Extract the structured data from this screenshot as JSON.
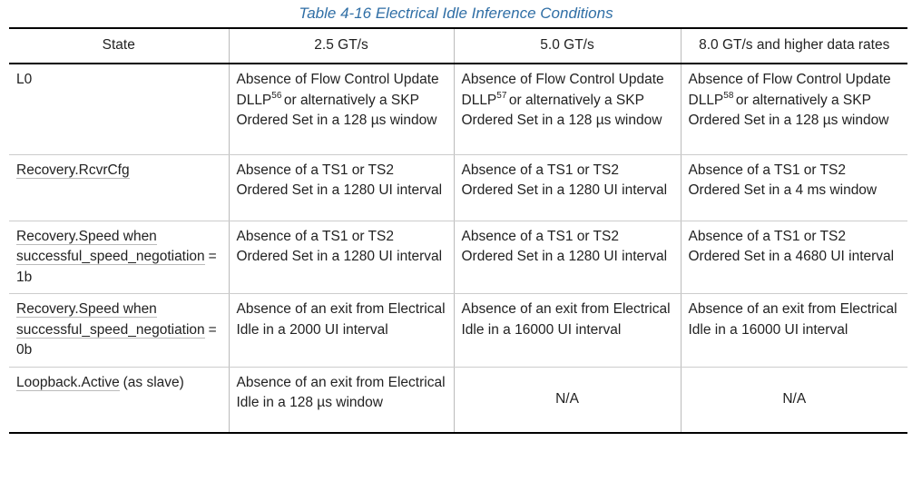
{
  "title": "Table 4-16 Electrical Idle Inference Conditions",
  "table": {
    "header": [
      "State",
      "2.5 GT/s",
      "5.0 GT/s",
      "8.0 GT/s and higher data rates"
    ],
    "rows": [
      [
        {
          "text": "L0"
        },
        {
          "text": "Absence of Flow Control Update DLLP",
          "note": "56",
          "rest": "or alternatively a SKP Ordered Set in a 128 µs window"
        },
        {
          "text": "Absence of Flow Control Update DLLP",
          "note": "57",
          "rest": "or alternatively a SKP Ordered Set in a 128 µs window"
        },
        {
          "text": "Absence of Flow Control Update DLLP",
          "note": "58",
          "rest": "or alternatively a SKP Ordered Set in a 128 µs window"
        }
      ],
      [
        {
          "link": "Recovery.RcvrCfg"
        },
        {
          "text": "Absence of a TS1 or TS2 Ordered Set in a 1280 UI interval"
        },
        {
          "text": "Absence of a TS1 or TS2 Ordered Set in a 1280 UI interval"
        },
        {
          "text": "Absence of a TS1 or TS2 Ordered Set in a 4 ms window"
        }
      ],
      [
        {
          "link": "Recovery.Speed when successful_speed_negotiation",
          "text": "= 1b"
        },
        {
          "text": "Absence of a TS1 or TS2 Ordered Set in a 1280 UI interval"
        },
        {
          "text": "Absence of a TS1 or TS2 Ordered Set in a 1280 UI interval"
        },
        {
          "text": "Absence of a TS1 or TS2 Ordered Set in a 4680 UI interval"
        }
      ],
      [
        {
          "link": "Recovery.Speed when successful_speed_negotiation",
          "text": "= 0b"
        },
        {
          "text": "Absence of an exit from Electrical Idle in a 2000 UI interval"
        },
        {
          "text": "Absence of an exit from Electrical Idle in a 16000 UI interval"
        },
        {
          "text": "Absence of an exit from Electrical Idle in a 16000 UI interval"
        }
      ],
      [
        {
          "link": "Loopback.Active",
          "text": "(as slave)"
        },
        {
          "text": "Absence of an exit from Electrical Idle in a 128 µs window"
        },
        {
          "text": "N/A"
        },
        {
          "text": "N/A"
        }
      ]
    ]
  }
}
